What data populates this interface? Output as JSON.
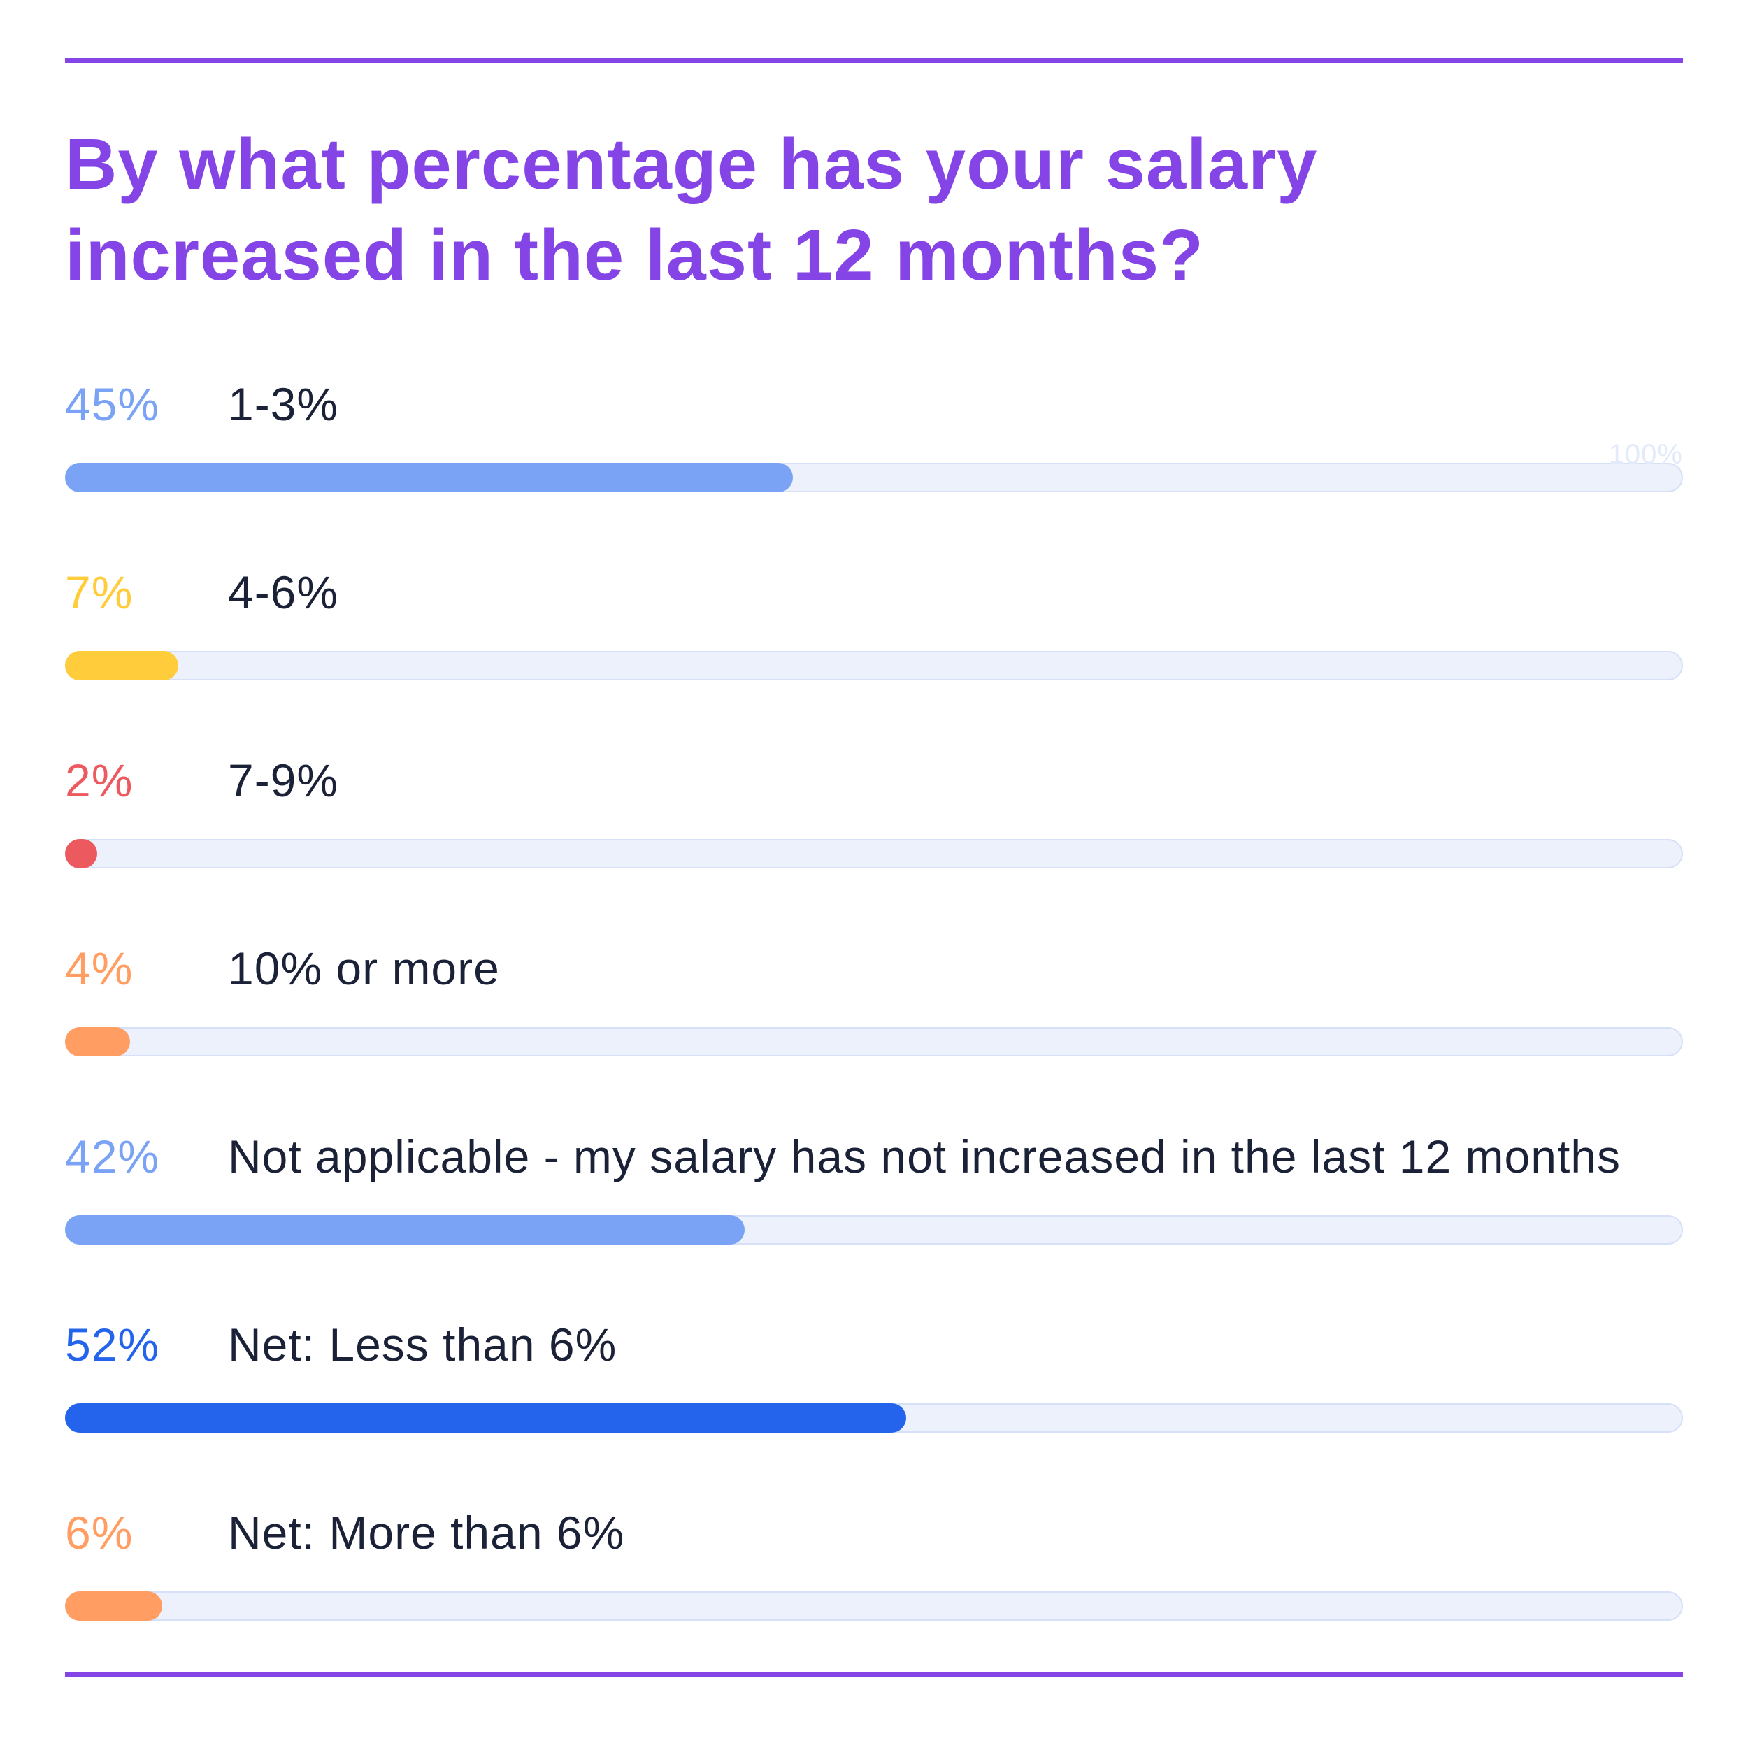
{
  "chart_data": {
    "type": "bar",
    "orientation": "horizontal",
    "title": "By what percentage has your salary increased in the last 12 months?",
    "axis_max_label": "100%",
    "xlim": [
      0,
      100
    ],
    "unit": "%",
    "categories": [
      "1-3%",
      "4-6%",
      "7-9%",
      "10% or more",
      "Not applicable - my salary has not increased in the last 12 months",
      "Net: Less than 6%",
      "Net: More than 6%"
    ],
    "values": [
      45,
      7,
      2,
      4,
      42,
      52,
      6
    ],
    "value_labels": [
      "45%",
      "7%",
      "2%",
      "4%",
      "42%",
      "52%",
      "6%"
    ],
    "colors": [
      "#7aa3f5",
      "#ffcc3b",
      "#ec5a5f",
      "#ff9d63",
      "#7aa3f5",
      "#2464ec",
      "#ff9d63"
    ]
  },
  "colors": {
    "accent": "#8544e6",
    "track": "#ecf1fc",
    "label_text": "#1b2238"
  }
}
